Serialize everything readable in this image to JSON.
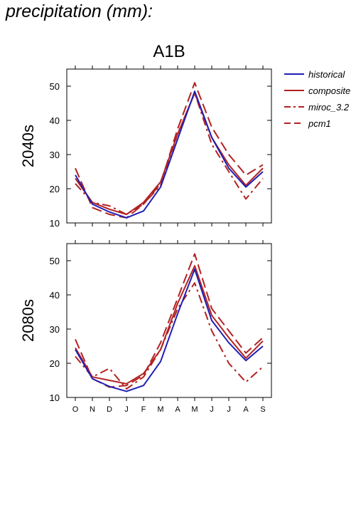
{
  "page": {
    "heading": "precipitation (mm):",
    "scenario": "A1B"
  },
  "legend": [
    {
      "name": "historical",
      "color": "#1f1fb4",
      "dash": "solid"
    },
    {
      "name": "composite",
      "color": "#b22222",
      "dash": "solid"
    },
    {
      "name": "miroc_3.2",
      "color": "#b22222",
      "dash": "dashdot"
    },
    {
      "name": "pcm1",
      "color": "#b22222",
      "dash": "dashed"
    }
  ],
  "chart_data": [
    {
      "type": "line",
      "title": "A1B",
      "ylabel": "2040s",
      "categories": [
        "O",
        "N",
        "D",
        "J",
        "F",
        "M",
        "A",
        "M",
        "J",
        "J",
        "A",
        "S"
      ],
      "ylim": [
        10,
        55
      ],
      "yticks": [
        10,
        20,
        30,
        40,
        50
      ],
      "series": [
        {
          "name": "historical",
          "values": [
            24,
            15.5,
            13.2,
            11.5,
            13.5,
            20.5,
            34.5,
            48.5,
            35,
            26,
            20.5,
            25
          ]
        },
        {
          "name": "composite",
          "values": [
            23,
            16,
            14,
            12.5,
            16,
            22,
            36,
            48,
            35,
            27,
            21,
            26
          ]
        },
        {
          "name": "miroc_3.2",
          "values": [
            21.5,
            16,
            15,
            12.5,
            15.5,
            21,
            36,
            48,
            33,
            25,
            17,
            23
          ]
        },
        {
          "name": "pcm1",
          "values": [
            26,
            14.5,
            12.5,
            11.5,
            15.5,
            21.5,
            37.5,
            51,
            38,
            30,
            24,
            27
          ]
        }
      ]
    },
    {
      "type": "line",
      "ylabel": "2080s",
      "categories": [
        "O",
        "N",
        "D",
        "J",
        "F",
        "M",
        "A",
        "M",
        "J",
        "J",
        "A",
        "S"
      ],
      "ylim": [
        10,
        55
      ],
      "yticks": [
        10,
        20,
        30,
        40,
        50
      ],
      "series": [
        {
          "name": "historical",
          "values": [
            24,
            15.5,
            13.2,
            11.8,
            13.5,
            20.5,
            34.5,
            47.5,
            32.5,
            26,
            20.8,
            25
          ]
        },
        {
          "name": "composite",
          "values": [
            24.5,
            16,
            15,
            14,
            17,
            24,
            37.5,
            48.5,
            34,
            27.5,
            21.5,
            26.5
          ]
        },
        {
          "name": "miroc_3.2",
          "values": [
            22,
            16,
            18.5,
            12.5,
            16,
            24,
            36,
            43.5,
            29.5,
            20,
            14.5,
            19
          ]
        },
        {
          "name": "pcm1",
          "values": [
            27,
            15.5,
            13,
            13.5,
            16.5,
            26,
            39,
            52,
            36,
            29.5,
            23,
            27.5
          ]
        }
      ]
    }
  ]
}
